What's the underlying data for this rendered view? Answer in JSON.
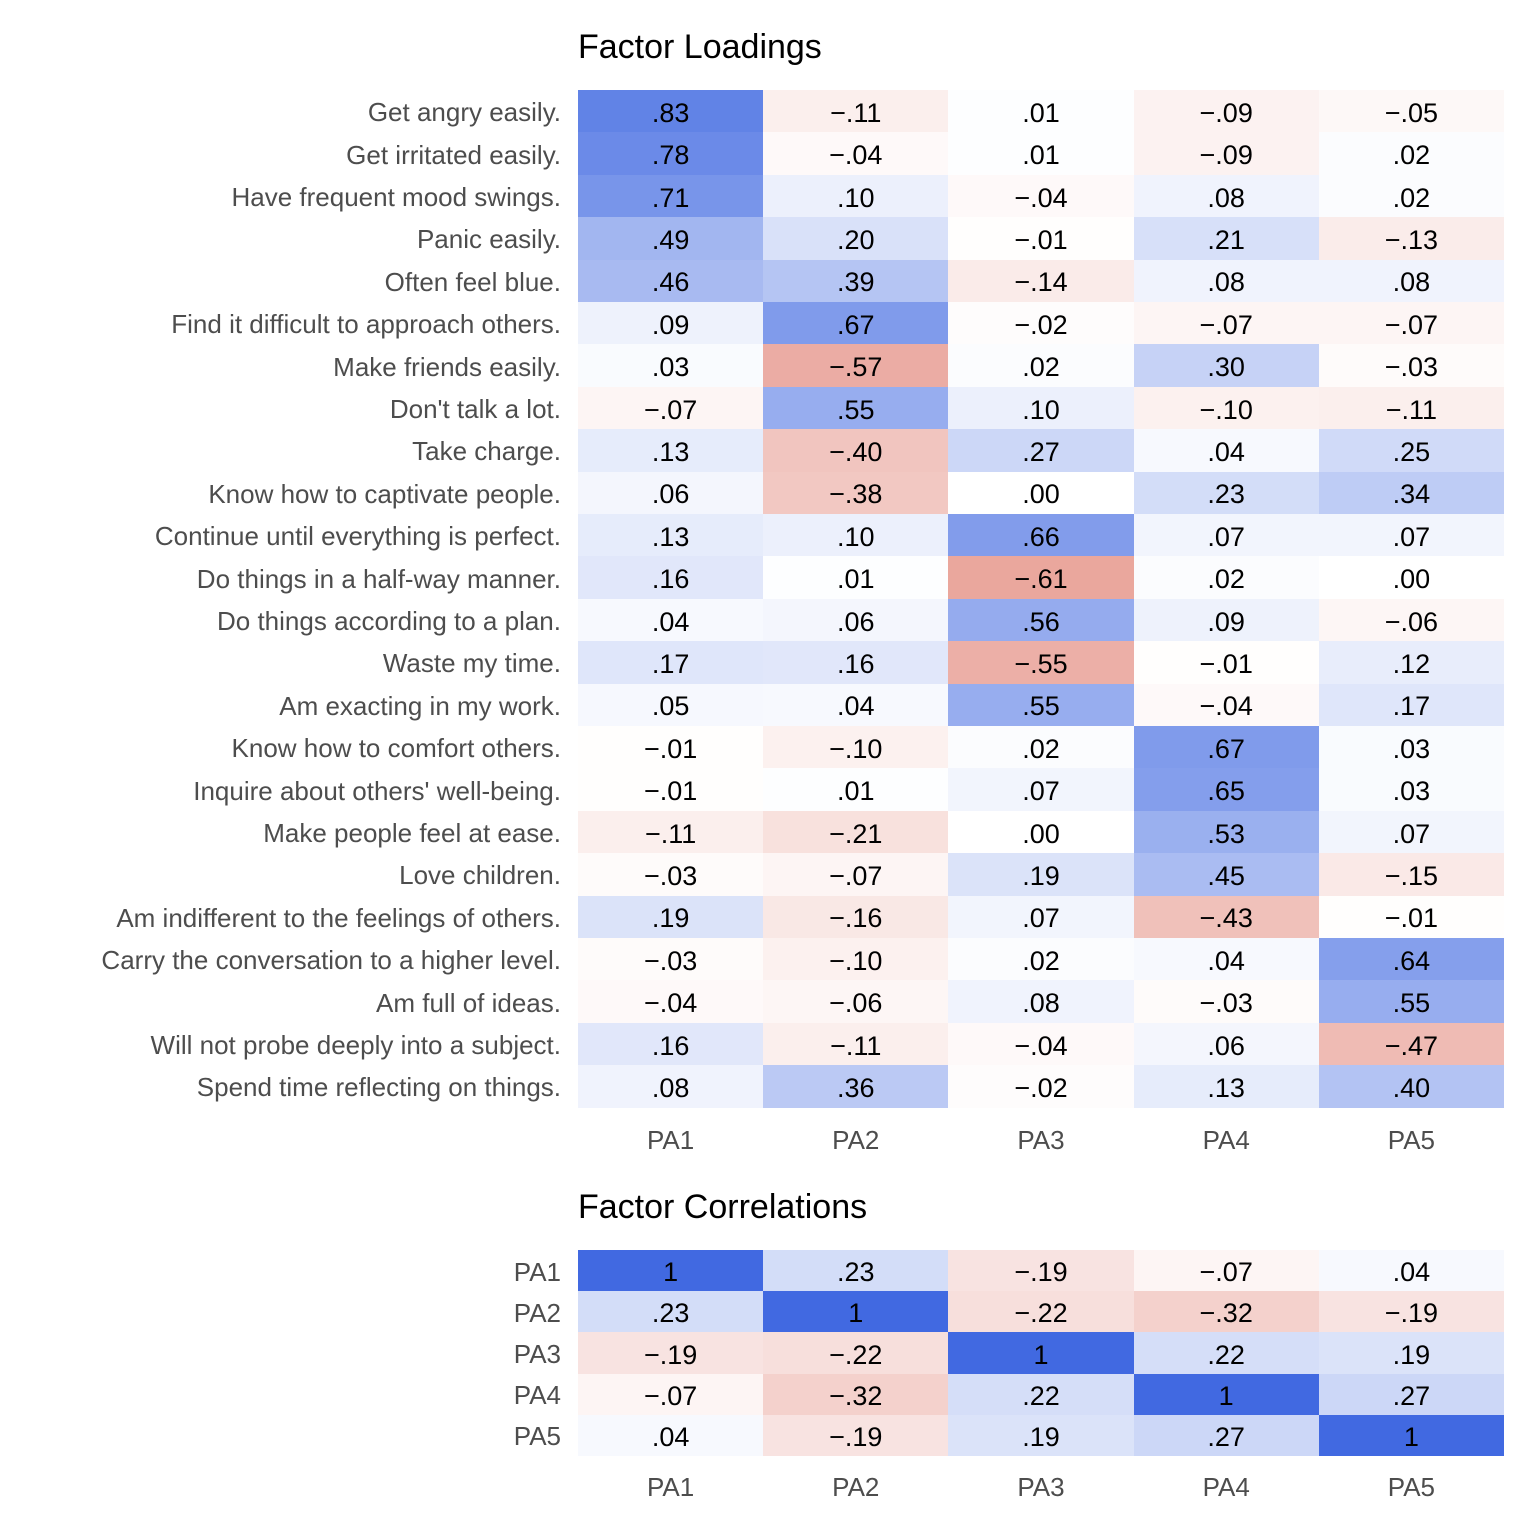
{
  "chart_data": [
    {
      "type": "heatmap",
      "title": "Factor Loadings",
      "columns": [
        "PA1",
        "PA2",
        "PA3",
        "PA4",
        "PA5"
      ],
      "rows": [
        "Get angry easily.",
        "Get irritated easily.",
        "Have frequent mood swings.",
        "Panic easily.",
        "Often feel blue.",
        "Find it difficult to approach others.",
        "Make friends easily.",
        "Don't talk a lot.",
        "Take charge.",
        "Know how to captivate people.",
        "Continue until everything is perfect.",
        "Do things in a half-way manner.",
        "Do things according to a plan.",
        "Waste my time.",
        "Am exacting in my work.",
        "Know how to comfort others.",
        "Inquire about others' well-being.",
        "Make people feel at ease.",
        "Love children.",
        "Am indifferent to the feelings of others.",
        "Carry the conversation to a higher level.",
        "Am full of ideas.",
        "Will not probe deeply into a subject.",
        "Spend time reflecting on things."
      ],
      "values": [
        [
          0.83,
          -0.11,
          0.01,
          -0.09,
          -0.05
        ],
        [
          0.78,
          -0.04,
          0.01,
          -0.09,
          0.02
        ],
        [
          0.71,
          0.1,
          -0.04,
          0.08,
          0.02
        ],
        [
          0.49,
          0.2,
          -0.01,
          0.21,
          -0.13
        ],
        [
          0.46,
          0.39,
          -0.14,
          0.08,
          0.08
        ],
        [
          0.09,
          0.67,
          -0.02,
          -0.07,
          -0.07
        ],
        [
          0.03,
          -0.57,
          0.02,
          0.3,
          -0.03
        ],
        [
          -0.07,
          0.55,
          0.1,
          -0.1,
          -0.11
        ],
        [
          0.13,
          -0.4,
          0.27,
          0.04,
          0.25
        ],
        [
          0.06,
          -0.38,
          0.0,
          0.23,
          0.34
        ],
        [
          0.13,
          0.1,
          0.66,
          0.07,
          0.07
        ],
        [
          0.16,
          0.01,
          -0.61,
          0.02,
          0.0
        ],
        [
          0.04,
          0.06,
          0.56,
          0.09,
          -0.06
        ],
        [
          0.17,
          0.16,
          -0.55,
          -0.01,
          0.12
        ],
        [
          0.05,
          0.04,
          0.55,
          -0.04,
          0.17
        ],
        [
          -0.01,
          -0.1,
          0.02,
          0.67,
          0.03
        ],
        [
          -0.01,
          0.01,
          0.07,
          0.65,
          0.03
        ],
        [
          -0.11,
          -0.21,
          0.0,
          0.53,
          0.07
        ],
        [
          -0.03,
          -0.07,
          0.19,
          0.45,
          -0.15
        ],
        [
          0.19,
          -0.16,
          0.07,
          -0.43,
          -0.01
        ],
        [
          -0.03,
          -0.1,
          0.02,
          0.04,
          0.64
        ],
        [
          -0.04,
          -0.06,
          0.08,
          -0.03,
          0.55
        ],
        [
          0.16,
          -0.11,
          -0.04,
          0.06,
          -0.47
        ],
        [
          0.08,
          0.36,
          -0.02,
          0.13,
          0.4
        ]
      ],
      "labels": [
        [
          ".83",
          "−.11",
          ".01",
          "−.09",
          "−.05"
        ],
        [
          ".78",
          "−.04",
          ".01",
          "−.09",
          ".02"
        ],
        [
          ".71",
          ".10",
          "−.04",
          ".08",
          ".02"
        ],
        [
          ".49",
          ".20",
          "−.01",
          ".21",
          "−.13"
        ],
        [
          ".46",
          ".39",
          "−.14",
          ".08",
          ".08"
        ],
        [
          ".09",
          ".67",
          "−.02",
          "−.07",
          "−.07"
        ],
        [
          ".03",
          "−.57",
          ".02",
          ".30",
          "−.03"
        ],
        [
          "−.07",
          ".55",
          ".10",
          "−.10",
          "−.11"
        ],
        [
          ".13",
          "−.40",
          ".27",
          ".04",
          ".25"
        ],
        [
          ".06",
          "−.38",
          ".00",
          ".23",
          ".34"
        ],
        [
          ".13",
          ".10",
          ".66",
          ".07",
          ".07"
        ],
        [
          ".16",
          ".01",
          "−.61",
          ".02",
          ".00"
        ],
        [
          ".04",
          ".06",
          ".56",
          ".09",
          "−.06"
        ],
        [
          ".17",
          ".16",
          "−.55",
          "−.01",
          ".12"
        ],
        [
          ".05",
          ".04",
          ".55",
          "−.04",
          ".17"
        ],
        [
          "−.01",
          "−.10",
          ".02",
          ".67",
          ".03"
        ],
        [
          "−.01",
          ".01",
          ".07",
          ".65",
          ".03"
        ],
        [
          "−.11",
          "−.21",
          ".00",
          ".53",
          ".07"
        ],
        [
          "−.03",
          "−.07",
          ".19",
          ".45",
          "−.15"
        ],
        [
          ".19",
          "−.16",
          ".07",
          "−.43",
          "−.01"
        ],
        [
          "−.03",
          "−.10",
          ".02",
          ".04",
          ".64"
        ],
        [
          "−.04",
          "−.06",
          ".08",
          "−.03",
          ".55"
        ],
        [
          ".16",
          "−.11",
          "−.04",
          ".06",
          "−.47"
        ],
        [
          ".08",
          ".36",
          "−.02",
          ".13",
          ".40"
        ]
      ],
      "color_scale": {
        "negative": "#dc6e5f",
        "zero": "#ffffff",
        "positive": "#4169e1",
        "limits": [
          -1,
          1
        ]
      },
      "grid": false
    },
    {
      "type": "heatmap",
      "title": "Factor Correlations",
      "columns": [
        "PA1",
        "PA2",
        "PA3",
        "PA4",
        "PA5"
      ],
      "rows": [
        "PA1",
        "PA2",
        "PA3",
        "PA4",
        "PA5"
      ],
      "values": [
        [
          1,
          0.23,
          -0.19,
          -0.07,
          0.04
        ],
        [
          0.23,
          1,
          -0.22,
          -0.32,
          -0.19
        ],
        [
          -0.19,
          -0.22,
          1,
          0.22,
          0.19
        ],
        [
          -0.07,
          -0.32,
          0.22,
          1,
          0.27
        ],
        [
          0.04,
          -0.19,
          0.19,
          0.27,
          1
        ]
      ],
      "labels": [
        [
          "1",
          ".23",
          "−.19",
          "−.07",
          ".04"
        ],
        [
          ".23",
          "1",
          "−.22",
          "−.32",
          "−.19"
        ],
        [
          "−.19",
          "−.22",
          "1",
          ".22",
          ".19"
        ],
        [
          "−.07",
          "−.32",
          ".22",
          "1",
          ".27"
        ],
        [
          ".04",
          "−.19",
          ".19",
          ".27",
          "1"
        ]
      ],
      "color_scale": {
        "negative": "#dc6e5f",
        "zero": "#ffffff",
        "positive": "#4169e1",
        "limits": [
          -1,
          1
        ]
      },
      "grid": false
    }
  ]
}
